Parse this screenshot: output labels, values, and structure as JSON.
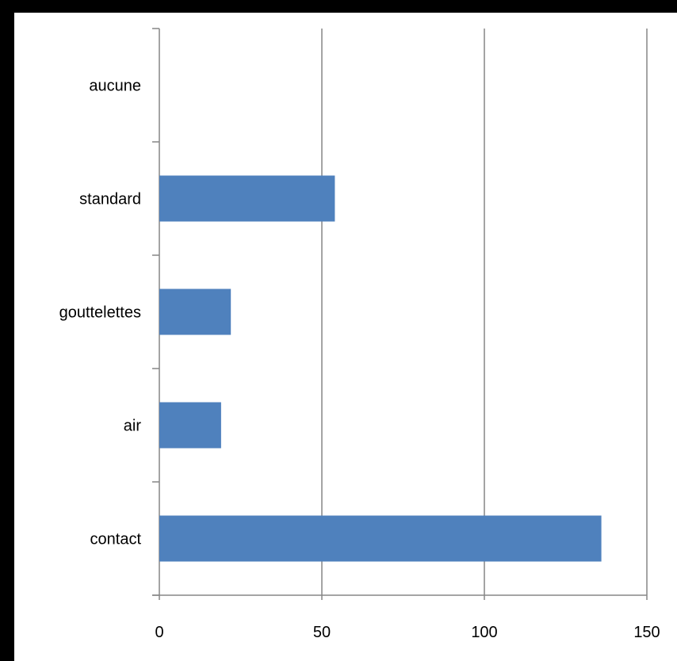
{
  "chart_data": {
    "type": "bar",
    "orientation": "horizontal",
    "categories": [
      "contact",
      "air",
      "gouttelettes",
      "standard",
      "aucune"
    ],
    "values": [
      136,
      19,
      22,
      54,
      0
    ],
    "xlim": [
      0,
      150
    ],
    "xticks": [
      "0",
      "50",
      "100",
      "150"
    ],
    "grid": "vertical",
    "legend": "none",
    "colors": {
      "bar": "#4f81bd",
      "grid": "#868686",
      "axis": "#868686",
      "background": "#ffffff"
    }
  }
}
